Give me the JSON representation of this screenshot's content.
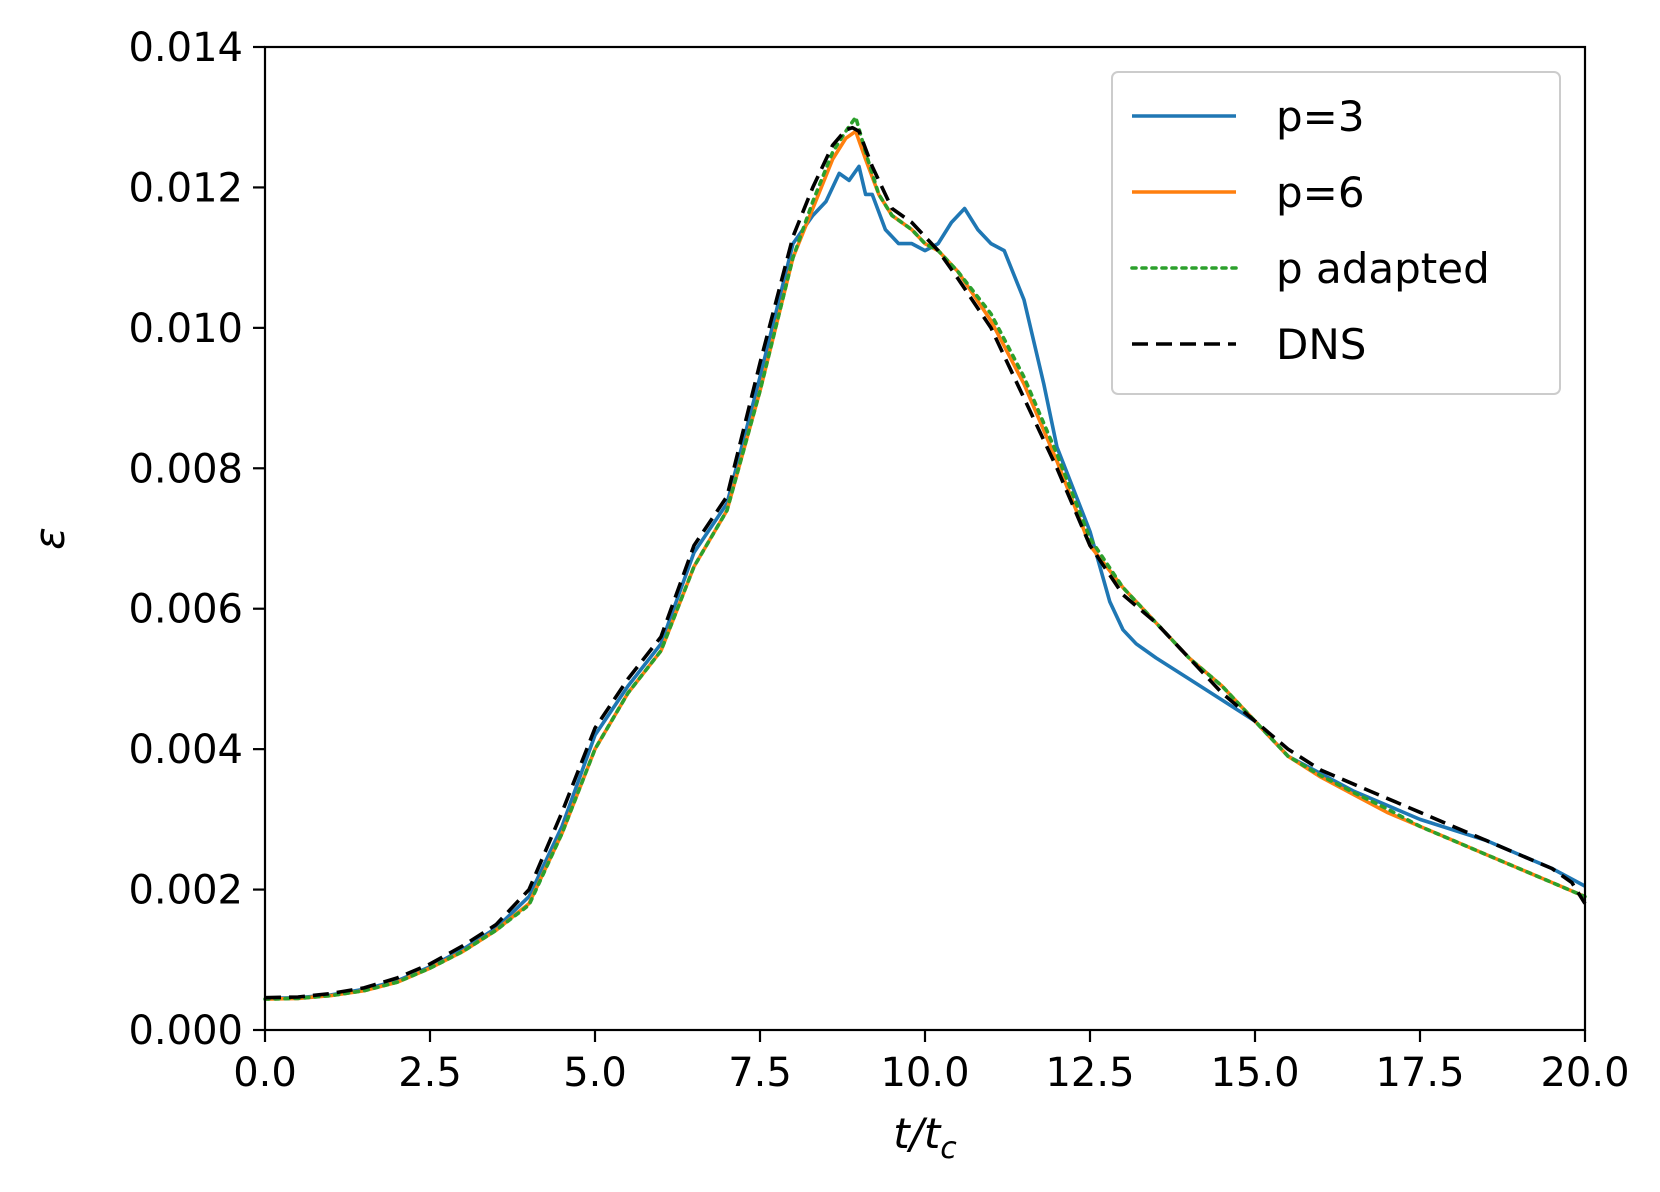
{
  "chart_data": {
    "type": "line",
    "xlabel": "t/t",
    "xlabel_sub": "c",
    "ylabel": "ε",
    "xlim": [
      0,
      20
    ],
    "ylim": [
      0,
      0.014
    ],
    "xticks": [
      0,
      2.5,
      5,
      7.5,
      10,
      12.5,
      15,
      17.5,
      20
    ],
    "xtick_labels": [
      "0.0",
      "2.5",
      "5.0",
      "7.5",
      "10.0",
      "12.5",
      "15.0",
      "17.5",
      "20.0"
    ],
    "yticks": [
      0,
      0.002,
      0.004,
      0.006,
      0.008,
      0.01,
      0.012,
      0.014
    ],
    "ytick_labels": [
      "0.000",
      "0.002",
      "0.004",
      "0.006",
      "0.008",
      "0.010",
      "0.012",
      "0.014"
    ],
    "grid": false,
    "legend_position": "top-right",
    "series": [
      {
        "name": "p=3",
        "color": "#1f77b4",
        "style": "solid",
        "x": [
          0,
          0.5,
          1,
          1.5,
          2,
          2.5,
          3,
          3.5,
          4,
          4.5,
          5,
          5.5,
          6,
          6.5,
          7,
          7.5,
          8,
          8.3,
          8.5,
          8.7,
          8.85,
          9.0,
          9.1,
          9.2,
          9.4,
          9.6,
          9.8,
          10.0,
          10.2,
          10.4,
          10.6,
          10.8,
          11.0,
          11.2,
          11.5,
          11.8,
          12.0,
          12.5,
          12.8,
          13.0,
          13.2,
          13.5,
          14.0,
          14.5,
          15.0,
          15.5,
          16.0,
          16.5,
          17.0,
          17.5,
          18.0,
          18.5,
          19.0,
          19.5,
          20.0
        ],
        "y": [
          0.00045,
          0.00046,
          0.0005,
          0.00058,
          0.0007,
          0.0009,
          0.00115,
          0.00145,
          0.0019,
          0.0029,
          0.0042,
          0.0049,
          0.0055,
          0.0068,
          0.0075,
          0.0093,
          0.0112,
          0.0116,
          0.0118,
          0.0122,
          0.0121,
          0.0123,
          0.0119,
          0.0119,
          0.0114,
          0.0112,
          0.0112,
          0.0111,
          0.0112,
          0.0115,
          0.0117,
          0.0114,
          0.0112,
          0.0111,
          0.0104,
          0.0092,
          0.0083,
          0.0071,
          0.0061,
          0.0057,
          0.0055,
          0.0053,
          0.005,
          0.0047,
          0.0044,
          0.0039,
          0.00365,
          0.0034,
          0.0032,
          0.003,
          0.00285,
          0.0027,
          0.0025,
          0.0023,
          0.00205
        ]
      },
      {
        "name": "p=6",
        "color": "#ff7f0e",
        "style": "solid",
        "x": [
          0,
          0.5,
          1,
          1.5,
          2,
          2.5,
          3,
          3.5,
          4,
          4.5,
          5,
          5.5,
          6,
          6.5,
          7,
          7.5,
          8,
          8.3,
          8.6,
          8.8,
          8.95,
          9.1,
          9.3,
          9.5,
          9.8,
          10.0,
          10.2,
          10.5,
          11.0,
          11.5,
          12.0,
          12.5,
          13.0,
          13.5,
          14.0,
          14.5,
          15.0,
          15.5,
          16.0,
          16.5,
          17.0,
          17.5,
          18.0,
          18.5,
          19.0,
          19.5,
          20.0
        ],
        "y": [
          0.00044,
          0.00045,
          0.00049,
          0.00056,
          0.00068,
          0.00088,
          0.00112,
          0.00142,
          0.0018,
          0.0028,
          0.004,
          0.0048,
          0.0054,
          0.0066,
          0.0074,
          0.0091,
          0.011,
          0.0117,
          0.0124,
          0.0127,
          0.0128,
          0.0124,
          0.0119,
          0.0116,
          0.0114,
          0.0112,
          0.0111,
          0.0108,
          0.0101,
          0.0092,
          0.0081,
          0.0069,
          0.0063,
          0.0058,
          0.0053,
          0.0049,
          0.0044,
          0.0039,
          0.0036,
          0.00335,
          0.0031,
          0.0029,
          0.0027,
          0.0025,
          0.0023,
          0.0021,
          0.0019
        ]
      },
      {
        "name": "p adapted",
        "color": "#2ca02c",
        "style": "dotted",
        "x": [
          0,
          0.5,
          1,
          1.5,
          2,
          2.5,
          3,
          3.5,
          4,
          4.5,
          5,
          5.5,
          6,
          6.5,
          7,
          7.5,
          8,
          8.3,
          8.6,
          8.8,
          8.95,
          9.1,
          9.3,
          9.5,
          9.8,
          10.0,
          10.2,
          10.5,
          11.0,
          11.5,
          12.0,
          12.5,
          13.0,
          13.5,
          14.0,
          14.5,
          15.0,
          15.5,
          16.0,
          16.5,
          17.0,
          17.5,
          18.0,
          18.5,
          19.0,
          19.5,
          20.0
        ],
        "y": [
          0.00044,
          0.00045,
          0.00049,
          0.00056,
          0.00068,
          0.00088,
          0.00112,
          0.00142,
          0.00178,
          0.0028,
          0.004,
          0.0048,
          0.0054,
          0.0066,
          0.0074,
          0.0091,
          0.011,
          0.0118,
          0.0125,
          0.0128,
          0.013,
          0.0125,
          0.0119,
          0.0116,
          0.0114,
          0.0112,
          0.0111,
          0.0108,
          0.0102,
          0.0093,
          0.0082,
          0.007,
          0.0063,
          0.0058,
          0.0053,
          0.0049,
          0.0044,
          0.0039,
          0.00362,
          0.00338,
          0.00315,
          0.0029,
          0.0027,
          0.0025,
          0.0023,
          0.0021,
          0.0019
        ]
      },
      {
        "name": "DNS",
        "color": "#000000",
        "style": "dashed",
        "x": [
          0,
          0.5,
          1,
          1.5,
          2,
          2.5,
          3,
          3.5,
          4,
          4.5,
          5,
          5.5,
          6,
          6.5,
          7,
          7.5,
          8,
          8.3,
          8.6,
          8.8,
          8.9,
          9.0,
          9.2,
          9.5,
          9.8,
          10.0,
          10.2,
          10.5,
          11.0,
          11.5,
          12.0,
          12.5,
          13.0,
          13.5,
          14.0,
          14.5,
          15.0,
          15.5,
          16.0,
          16.5,
          17.0,
          17.5,
          18.0,
          18.5,
          19.0,
          19.5,
          19.8,
          20.0
        ],
        "y": [
          0.00046,
          0.00047,
          0.00052,
          0.0006,
          0.00074,
          0.00094,
          0.0012,
          0.0015,
          0.002,
          0.0031,
          0.0043,
          0.005,
          0.0056,
          0.0069,
          0.0076,
          0.0095,
          0.0113,
          0.012,
          0.0126,
          0.01282,
          0.01285,
          0.0128,
          0.0123,
          0.0117,
          0.0115,
          0.0113,
          0.0111,
          0.0107,
          0.01,
          0.009,
          0.008,
          0.0069,
          0.0062,
          0.0058,
          0.0053,
          0.0048,
          0.0044,
          0.004,
          0.0037,
          0.0035,
          0.0033,
          0.0031,
          0.0029,
          0.0027,
          0.0025,
          0.0023,
          0.0021,
          0.0018
        ]
      }
    ]
  }
}
